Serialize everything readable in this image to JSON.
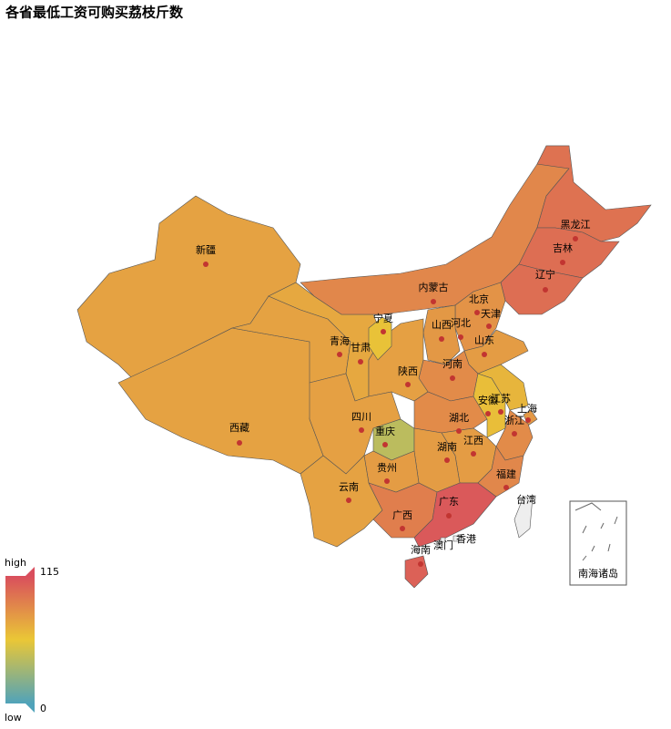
{
  "chart_data": {
    "type": "map",
    "title": "各省最低工资可购买荔枝斤数",
    "regions": [
      {
        "name": "新疆",
        "value": 75
      },
      {
        "name": "西藏",
        "value": 75
      },
      {
        "name": "青海",
        "value": 75
      },
      {
        "name": "甘肃",
        "value": 72
      },
      {
        "name": "内蒙古",
        "value": 88
      },
      {
        "name": "黑龙江",
        "value": 98
      },
      {
        "name": "吉林",
        "value": 100
      },
      {
        "name": "辽宁",
        "value": 100
      },
      {
        "name": "北京",
        "value": 100
      },
      {
        "name": "天津",
        "value": 98
      },
      {
        "name": "河北",
        "value": 82
      },
      {
        "name": "山西",
        "value": 80
      },
      {
        "name": "山东",
        "value": 78
      },
      {
        "name": "河南",
        "value": 86
      },
      {
        "name": "陕西",
        "value": 76
      },
      {
        "name": "宁夏",
        "value": 60
      },
      {
        "name": "四川",
        "value": 76
      },
      {
        "name": "重庆",
        "value": 40
      },
      {
        "name": "湖北",
        "value": 86
      },
      {
        "name": "安徽",
        "value": 62
      },
      {
        "name": "江苏",
        "value": 66
      },
      {
        "name": "上海",
        "value": 80
      },
      {
        "name": "浙江",
        "value": 86
      },
      {
        "name": "江西",
        "value": 78
      },
      {
        "name": "湖南",
        "value": 78
      },
      {
        "name": "贵州",
        "value": 78
      },
      {
        "name": "云南",
        "value": 75
      },
      {
        "name": "广西",
        "value": 92
      },
      {
        "name": "广东",
        "value": 110
      },
      {
        "name": "福建",
        "value": 88
      },
      {
        "name": "海南",
        "value": 106
      },
      {
        "name": "台湾",
        "value": null
      },
      {
        "name": "香港",
        "value": null
      },
      {
        "name": "澳门",
        "value": null
      }
    ],
    "inset_label": "南海诸岛",
    "visual_map": {
      "min": 0,
      "max": 115,
      "high": "high",
      "low": "low",
      "colors": [
        "#50a3ba",
        "#eac736",
        "#d94e5d"
      ],
      "no_data_color": "#eeeeee"
    }
  }
}
